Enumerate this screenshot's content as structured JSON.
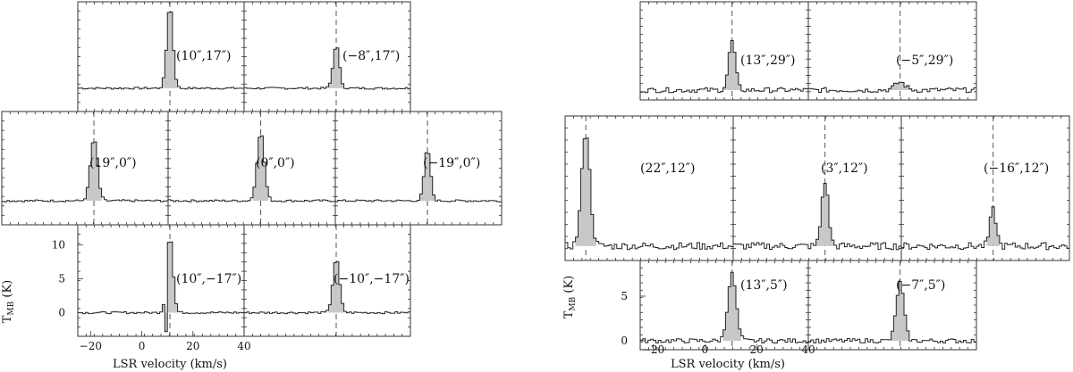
{
  "chart_data": [
    {
      "type": "line",
      "group": "left",
      "xlabel": "LSR velocity (km/s)",
      "ylabel": "T",
      "ylabel_sub": "MB",
      "ylabel_unit": "(K)",
      "xlim": [
        -25,
        40
      ],
      "ylim": [
        -3.5,
        13
      ],
      "xticks": [
        -20,
        0,
        20,
        40
      ],
      "yticks": [
        0,
        5,
        10
      ],
      "vsys": 11,
      "panels": [
        {
          "label": "(10″,17″)",
          "peak": 12.5,
          "width": 1.2,
          "noise": 0.15
        },
        {
          "label": "(−8″,17″)",
          "peak": 6.5,
          "width": 1.2,
          "noise": 0.15
        },
        {
          "label": "(19″,0″)",
          "peak": 9.0,
          "width": 1.4,
          "noise": 0.15
        },
        {
          "label": "(0″,0″)",
          "peak": 10.0,
          "width": 1.4,
          "noise": 0.15
        },
        {
          "label": "(−19″,0″)",
          "peak": 7.5,
          "width": 1.2,
          "noise": 0.15
        },
        {
          "label": "(10″,−17″)",
          "peak": 11.5,
          "width": 1.2,
          "noise": 0.15,
          "dip": -2.8
        },
        {
          "label": "(−10″,−17″)",
          "peak": 8.0,
          "width": 1.3,
          "noise": 0.15
        }
      ]
    },
    {
      "type": "line",
      "group": "right",
      "xlabel": "LSR velocity (km/s)",
      "ylabel": "T",
      "ylabel_sub": "MB",
      "ylabel_unit": "(K)",
      "xlim": [
        -25,
        40
      ],
      "ylim": [
        -1,
        9
      ],
      "xticks": [
        -20,
        0,
        20,
        40
      ],
      "yticks": [
        0,
        5
      ],
      "vsys": 11,
      "panels": [
        {
          "label": "(13″,29″)",
          "peak": 5.0,
          "width": 1.3,
          "noise": 0.25,
          "vcen": 10.5
        },
        {
          "label": "(−5″,29″)",
          "peak": 0.8,
          "width": 2.0,
          "noise": 0.25,
          "vcen": 10.5
        },
        {
          "label": "(22″,12″)",
          "peak": 8.0,
          "width": 1.6,
          "noise": 0.25,
          "vcen": -17
        },
        {
          "label": "(3″,12″)",
          "peak": 4.5,
          "width": 1.3,
          "noise": 0.25,
          "vcen": 10.5
        },
        {
          "label": "(−16″,12″)",
          "peak": 2.5,
          "width": 1.2,
          "noise": 0.25,
          "vcen": 10.5
        },
        {
          "label": "(13″,5″)",
          "peak": 7.5,
          "width": 1.6,
          "noise": 0.25,
          "vcen": 10.5
        },
        {
          "label": "(−7″,5″)",
          "peak": 6.5,
          "width": 1.5,
          "noise": 0.25,
          "vcen": 10.5
        }
      ]
    }
  ]
}
